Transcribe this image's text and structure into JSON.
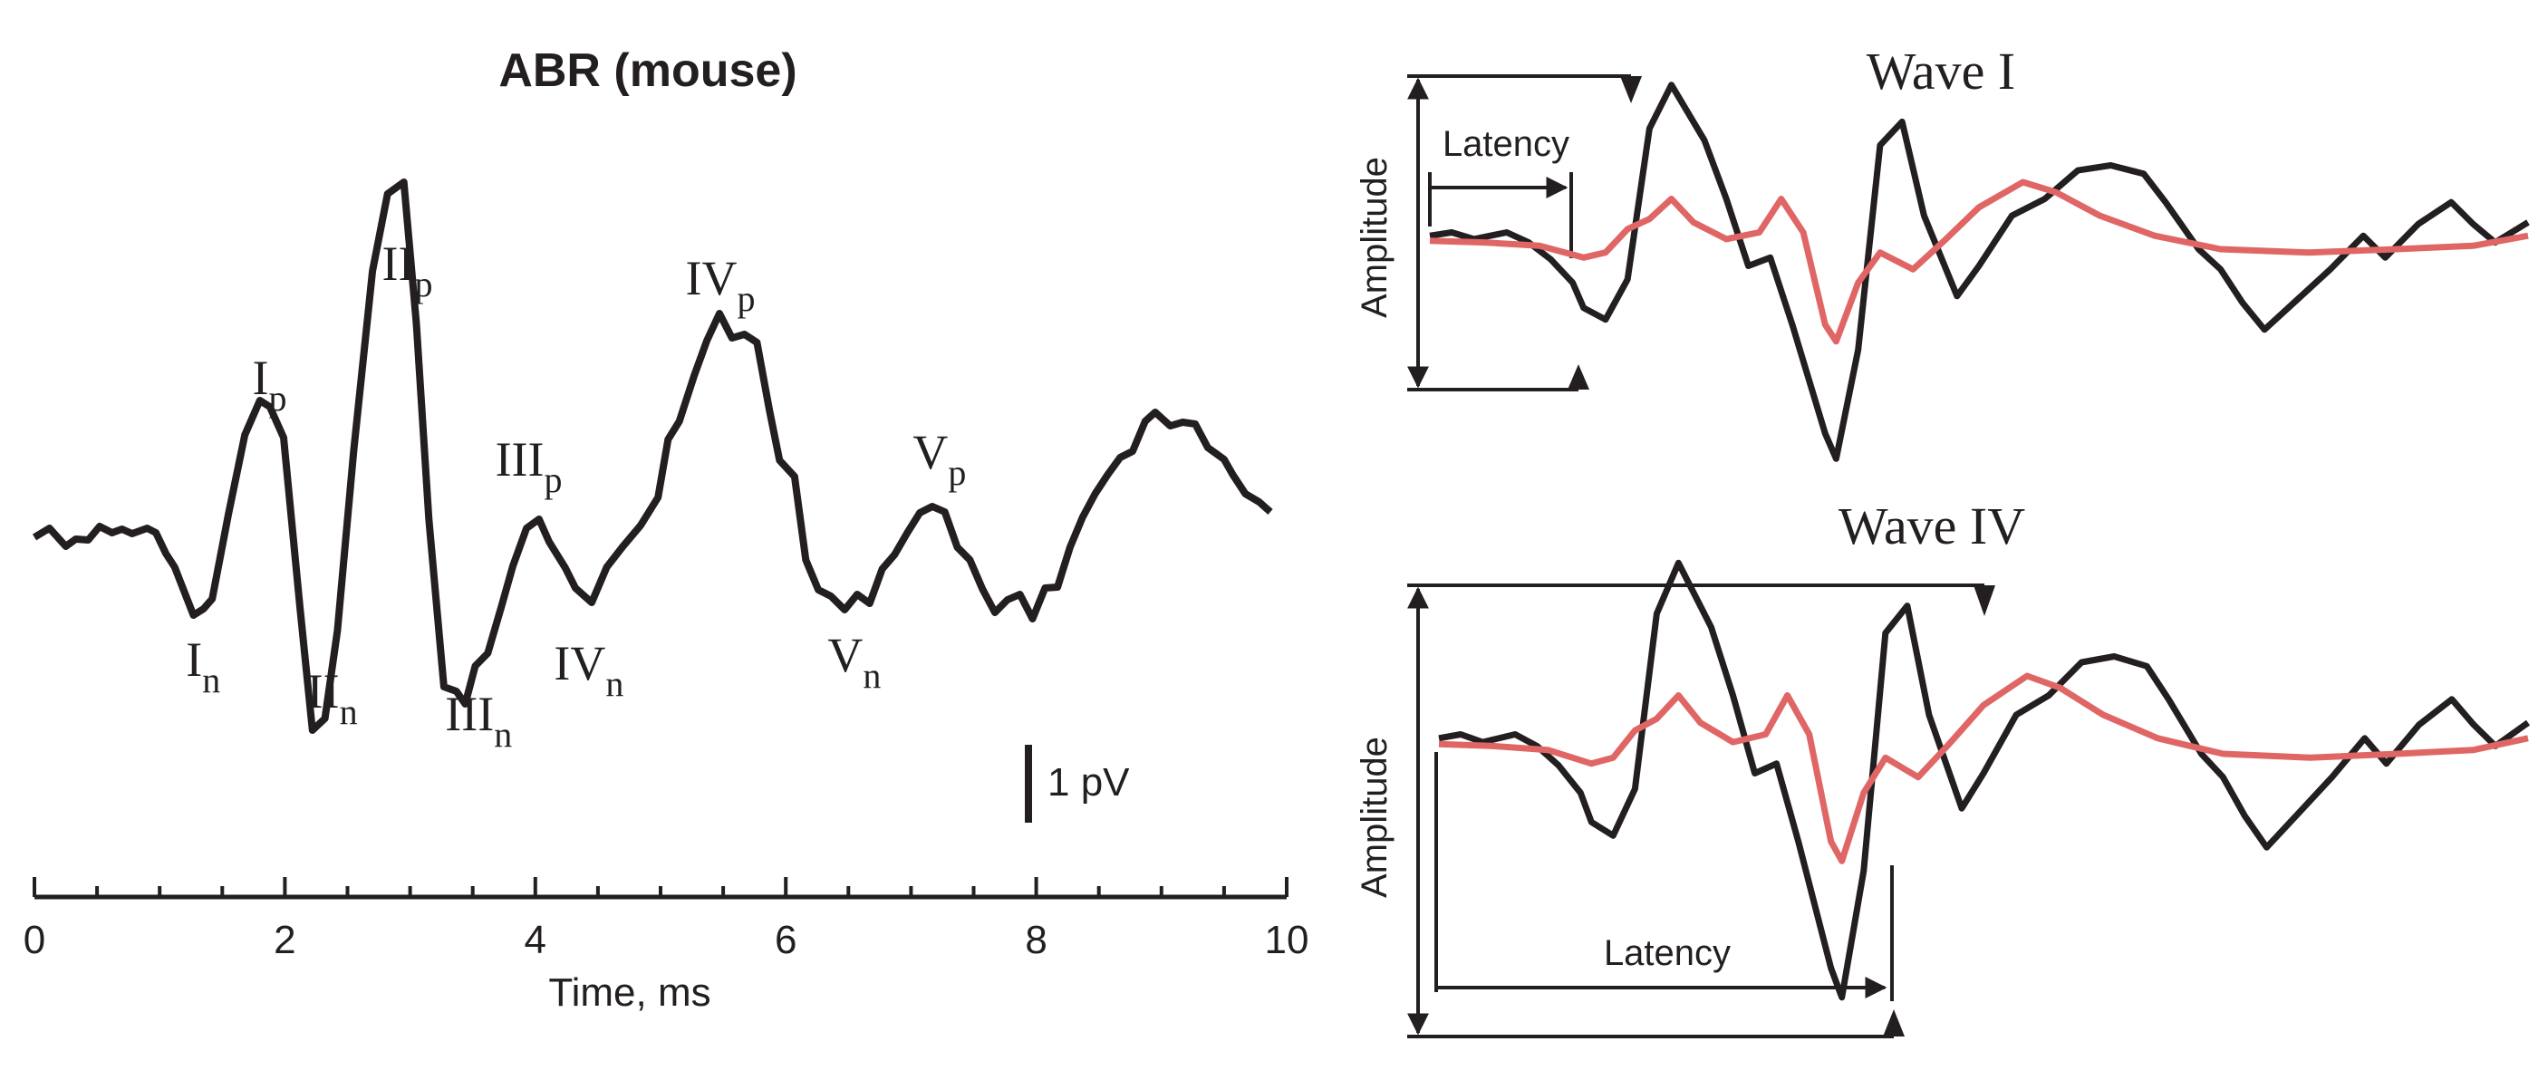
{
  "chart_data": [
    {
      "type": "line",
      "title": "ABR (mouse)",
      "xlabel": "Time, ms",
      "ylabel": "",
      "xlim": [
        0,
        10
      ],
      "x_ticks": [
        "0",
        "2",
        "4",
        "6",
        "8",
        "10"
      ],
      "scale_bar_label": "1 pV",
      "grid": false,
      "series": [
        {
          "color": "#231f20",
          "x": [
            0,
            0.12,
            0.25,
            0.33,
            0.43,
            0.52,
            0.62,
            0.7,
            0.78,
            0.9,
            0.97,
            1.05,
            1.12,
            1.27,
            1.35,
            1.42,
            1.55,
            1.68,
            1.8,
            1.88,
            1.99,
            2.12,
            2.22,
            2.32,
            2.42,
            2.55,
            2.7,
            2.82,
            2.95,
            3.05,
            3.15,
            3.27,
            3.37,
            3.44,
            3.52,
            3.62,
            3.73,
            3.82,
            3.93,
            4.03,
            4.11,
            4.24,
            4.32,
            4.45,
            4.57,
            4.7,
            4.84,
            4.98,
            5.06,
            5.15,
            5.27,
            5.37,
            5.47,
            5.57,
            5.67,
            5.77,
            5.87,
            5.95,
            6.07,
            6.16,
            6.26,
            6.36,
            6.47,
            6.57,
            6.67,
            6.77,
            6.87,
            6.97,
            7.07,
            7.17,
            7.27,
            7.37,
            7.47,
            7.57,
            7.67,
            7.77,
            7.87,
            7.97,
            8.07,
            8.17,
            8.27,
            8.37,
            8.47,
            8.57,
            8.67,
            8.77,
            8.87,
            8.95,
            9.07,
            9.17,
            9.27,
            9.37,
            9.5,
            9.57,
            9.67,
            9.78,
            9.87
          ],
          "y": [
            -0.1,
            0.0,
            -0.2,
            -0.12,
            -0.13,
            0.02,
            -0.05,
            -0.01,
            -0.06,
            0.0,
            -0.05,
            -0.28,
            -0.43,
            -0.96,
            -0.89,
            -0.78,
            0.16,
            1.03,
            1.41,
            1.34,
            1.0,
            -0.87,
            -2.23,
            -2.1,
            -1.13,
            0.86,
            2.84,
            3.69,
            3.82,
            2.26,
            0.1,
            -1.75,
            -1.8,
            -1.94,
            -1.52,
            -1.38,
            -0.86,
            -0.42,
            0.0,
            0.1,
            -0.15,
            -0.44,
            -0.66,
            -0.82,
            -0.43,
            -0.2,
            0.03,
            0.34,
            0.98,
            1.18,
            1.69,
            2.07,
            2.37,
            2.1,
            2.14,
            2.05,
            1.3,
            0.75,
            0.57,
            -0.35,
            -0.68,
            -0.75,
            -0.9,
            -0.73,
            -0.83,
            -0.45,
            -0.29,
            -0.05,
            0.17,
            0.24,
            0.18,
            -0.21,
            -0.35,
            -0.67,
            -0.93,
            -0.79,
            -0.73,
            -1.0,
            -0.66,
            -0.65,
            -0.21,
            0.12,
            0.38,
            0.59,
            0.78,
            0.85,
            1.18,
            1.28,
            1.13,
            1.17,
            1.15,
            0.89,
            0.76,
            0.59,
            0.38,
            0.29,
            0.18
          ]
        }
      ],
      "annotations": [
        {
          "base": "I",
          "sub": "p",
          "x": 1.95
        },
        {
          "base": "I",
          "sub": "n",
          "x": 1.42
        },
        {
          "base": "II",
          "sub": "p",
          "x": 3.05
        },
        {
          "base": "II",
          "sub": "n",
          "x": 2.45
        },
        {
          "base": "III",
          "sub": "p",
          "x": 4.02
        },
        {
          "base": "III",
          "sub": "n",
          "x": 3.62
        },
        {
          "base": "IV",
          "sub": "p",
          "x": 5.55
        },
        {
          "base": "IV",
          "sub": "n",
          "x": 4.5
        },
        {
          "base": "V",
          "sub": "p",
          "x": 7.3
        },
        {
          "base": "V",
          "sub": "n",
          "x": 6.62
        }
      ]
    },
    {
      "type": "line",
      "title": "Wave I",
      "ylabel": "Amplitude",
      "latency_label": "Latency",
      "series": [
        {
          "color": "#231f20",
          "points": [
            [
              0,
              0.08
            ],
            [
              0.02,
              0.1
            ],
            [
              0.04,
              0.06
            ],
            [
              0.07,
              0.1
            ],
            [
              0.09,
              0.04
            ],
            [
              0.11,
              -0.06
            ],
            [
              0.13,
              -0.2
            ],
            [
              0.14,
              -0.35
            ],
            [
              0.16,
              -0.42
            ],
            [
              0.18,
              -0.18
            ],
            [
              0.2,
              0.72
            ],
            [
              0.22,
              0.98
            ],
            [
              0.25,
              0.65
            ],
            [
              0.27,
              0.3
            ],
            [
              0.29,
              -0.1
            ],
            [
              0.31,
              -0.05
            ],
            [
              0.33,
              -0.45
            ],
            [
              0.36,
              -1.1
            ],
            [
              0.37,
              -1.25
            ],
            [
              0.39,
              -0.6
            ],
            [
              0.41,
              0.62
            ],
            [
              0.43,
              0.76
            ],
            [
              0.45,
              0.2
            ],
            [
              0.48,
              -0.28
            ],
            [
              0.5,
              -0.1
            ],
            [
              0.53,
              0.2
            ],
            [
              0.56,
              0.3
            ],
            [
              0.59,
              0.47
            ],
            [
              0.62,
              0.5
            ],
            [
              0.65,
              0.45
            ],
            [
              0.67,
              0.28
            ],
            [
              0.7,
              0.0
            ],
            [
              0.72,
              -0.12
            ],
            [
              0.74,
              -0.32
            ],
            [
              0.76,
              -0.48
            ],
            [
              0.79,
              -0.3
            ],
            [
              0.82,
              -0.12
            ],
            [
              0.85,
              0.08
            ],
            [
              0.87,
              -0.05
            ],
            [
              0.9,
              0.15
            ],
            [
              0.93,
              0.28
            ],
            [
              0.95,
              0.15
            ],
            [
              0.97,
              0.04
            ],
            [
              1,
              0.16
            ]
          ]
        },
        {
          "color": "#e06666",
          "points": [
            [
              0,
              0.05
            ],
            [
              0.05,
              0.04
            ],
            [
              0.1,
              0.02
            ],
            [
              0.14,
              -0.05
            ],
            [
              0.16,
              -0.02
            ],
            [
              0.18,
              0.12
            ],
            [
              0.2,
              0.18
            ],
            [
              0.22,
              0.3
            ],
            [
              0.24,
              0.16
            ],
            [
              0.27,
              0.06
            ],
            [
              0.3,
              0.1
            ],
            [
              0.32,
              0.3
            ],
            [
              0.34,
              0.1
            ],
            [
              0.36,
              -0.45
            ],
            [
              0.37,
              -0.55
            ],
            [
              0.39,
              -0.2
            ],
            [
              0.41,
              -0.02
            ],
            [
              0.44,
              -0.12
            ],
            [
              0.47,
              0.06
            ],
            [
              0.5,
              0.25
            ],
            [
              0.54,
              0.4
            ],
            [
              0.57,
              0.34
            ],
            [
              0.61,
              0.2
            ],
            [
              0.66,
              0.08
            ],
            [
              0.72,
              0.0
            ],
            [
              0.8,
              -0.02
            ],
            [
              0.88,
              0.0
            ],
            [
              0.95,
              0.02
            ],
            [
              1,
              0.08
            ]
          ]
        }
      ]
    },
    {
      "type": "line",
      "title": "Wave IV",
      "ylabel": "Amplitude",
      "latency_label": "Latency",
      "series": [
        {
          "color": "#231f20",
          "points": [
            [
              0,
              0.08
            ],
            [
              0.02,
              0.1
            ],
            [
              0.04,
              0.06
            ],
            [
              0.07,
              0.1
            ],
            [
              0.09,
              0.04
            ],
            [
              0.11,
              -0.06
            ],
            [
              0.13,
              -0.2
            ],
            [
              0.14,
              -0.35
            ],
            [
              0.16,
              -0.42
            ],
            [
              0.18,
              -0.18
            ],
            [
              0.2,
              0.72
            ],
            [
              0.22,
              0.98
            ],
            [
              0.25,
              0.65
            ],
            [
              0.27,
              0.3
            ],
            [
              0.29,
              -0.1
            ],
            [
              0.31,
              -0.05
            ],
            [
              0.33,
              -0.45
            ],
            [
              0.36,
              -1.1
            ],
            [
              0.37,
              -1.25
            ],
            [
              0.39,
              -0.6
            ],
            [
              0.41,
              0.62
            ],
            [
              0.43,
              0.76
            ],
            [
              0.45,
              0.2
            ],
            [
              0.48,
              -0.28
            ],
            [
              0.5,
              -0.1
            ],
            [
              0.53,
              0.2
            ],
            [
              0.56,
              0.3
            ],
            [
              0.59,
              0.47
            ],
            [
              0.62,
              0.5
            ],
            [
              0.65,
              0.45
            ],
            [
              0.67,
              0.28
            ],
            [
              0.7,
              0.0
            ],
            [
              0.72,
              -0.12
            ],
            [
              0.74,
              -0.32
            ],
            [
              0.76,
              -0.48
            ],
            [
              0.79,
              -0.3
            ],
            [
              0.82,
              -0.12
            ],
            [
              0.85,
              0.08
            ],
            [
              0.87,
              -0.05
            ],
            [
              0.9,
              0.15
            ],
            [
              0.93,
              0.28
            ],
            [
              0.95,
              0.15
            ],
            [
              0.97,
              0.04
            ],
            [
              1,
              0.16
            ]
          ]
        },
        {
          "color": "#e06666",
          "points": [
            [
              0,
              0.05
            ],
            [
              0.05,
              0.04
            ],
            [
              0.1,
              0.02
            ],
            [
              0.14,
              -0.05
            ],
            [
              0.16,
              -0.02
            ],
            [
              0.18,
              0.12
            ],
            [
              0.2,
              0.18
            ],
            [
              0.22,
              0.3
            ],
            [
              0.24,
              0.16
            ],
            [
              0.27,
              0.06
            ],
            [
              0.3,
              0.1
            ],
            [
              0.32,
              0.3
            ],
            [
              0.34,
              0.1
            ],
            [
              0.36,
              -0.45
            ],
            [
              0.37,
              -0.55
            ],
            [
              0.39,
              -0.2
            ],
            [
              0.41,
              -0.02
            ],
            [
              0.44,
              -0.12
            ],
            [
              0.47,
              0.06
            ],
            [
              0.5,
              0.25
            ],
            [
              0.54,
              0.4
            ],
            [
              0.57,
              0.34
            ],
            [
              0.61,
              0.2
            ],
            [
              0.66,
              0.08
            ],
            [
              0.72,
              0.0
            ],
            [
              0.8,
              -0.02
            ],
            [
              0.88,
              0.0
            ],
            [
              0.95,
              0.02
            ],
            [
              1,
              0.08
            ]
          ]
        }
      ]
    }
  ]
}
